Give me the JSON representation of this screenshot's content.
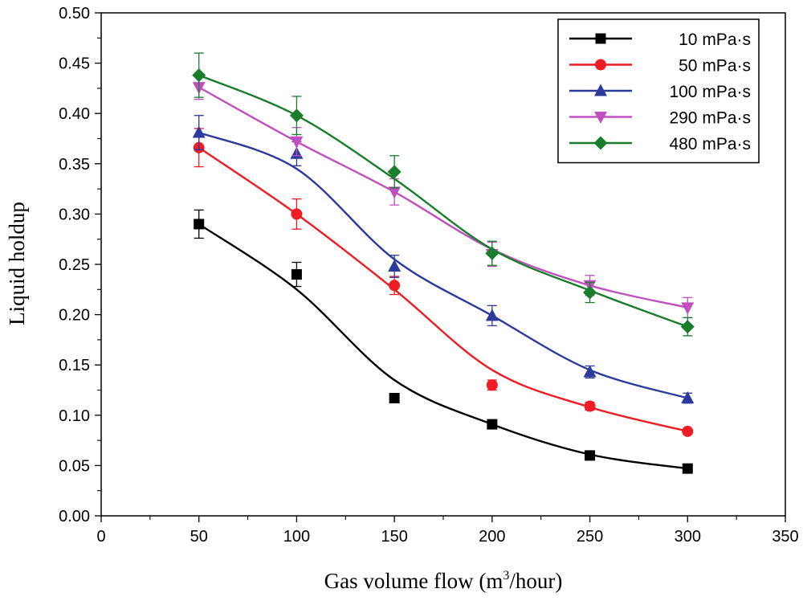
{
  "chart_data": {
    "type": "line",
    "title": "",
    "xlabel_prefix": "Gas volume flow (m",
    "xlabel_sup": "3",
    "xlabel_suffix": "/hour)",
    "ylabel": "Liquid holdup",
    "xlim": [
      0,
      350
    ],
    "ylim": [
      0,
      0.5
    ],
    "x_ticks": [
      0,
      50,
      100,
      150,
      200,
      250,
      300,
      350
    ],
    "y_ticks": [
      0.0,
      0.05,
      0.1,
      0.15,
      0.2,
      0.25,
      0.3,
      0.35,
      0.4,
      0.45,
      0.5
    ],
    "x_tick_labels": [
      "0",
      "50",
      "100",
      "150",
      "200",
      "250",
      "300",
      "350"
    ],
    "y_tick_labels": [
      "0.00",
      "0.05",
      "0.10",
      "0.15",
      "0.20",
      "0.25",
      "0.30",
      "0.35",
      "0.40",
      "0.45",
      "0.50"
    ],
    "legend_position": "top-right",
    "x": [
      50,
      100,
      150,
      200,
      250,
      300
    ],
    "series": [
      {
        "name": "10 mPa·s",
        "color": "#000000",
        "marker": "square",
        "values": [
          0.29,
          0.24,
          0.117,
          0.091,
          0.06,
          0.047
        ],
        "errors": [
          0.014,
          0.012,
          0,
          0,
          0,
          0
        ],
        "curve": [
          0.29,
          0.225,
          0.135,
          0.091,
          0.061,
          0.047
        ]
      },
      {
        "name": "50 mPa·s",
        "color": "#ee1c24",
        "marker": "circle",
        "values": [
          0.366,
          0.3,
          0.229,
          0.13,
          0.109,
          0.084
        ],
        "errors": [
          0.019,
          0.015,
          0.009,
          0.005,
          0.004,
          0
        ],
        "curve": [
          0.366,
          0.3,
          0.225,
          0.145,
          0.108,
          0.084
        ]
      },
      {
        "name": "100 mPa·s",
        "color": "#2b3a9b",
        "marker": "triangle-up",
        "values": [
          0.381,
          0.36,
          0.248,
          0.199,
          0.143,
          0.117
        ],
        "errors": [
          0.017,
          0.012,
          0.011,
          0.01,
          0.006,
          0.005
        ],
        "curve": [
          0.381,
          0.345,
          0.255,
          0.199,
          0.145,
          0.117
        ]
      },
      {
        "name": "290 mPa·s",
        "color": "#c050c0",
        "marker": "triangle-down",
        "values": [
          0.426,
          0.372,
          0.322,
          0.26,
          0.229,
          0.207
        ],
        "errors": [
          0.012,
          0.014,
          0.013,
          0.012,
          0.01,
          0.01
        ],
        "curve": [
          0.426,
          0.372,
          0.322,
          0.265,
          0.229,
          0.207
        ]
      },
      {
        "name": "480 mPa·s",
        "color": "#1a7d2c",
        "marker": "diamond",
        "values": [
          0.438,
          0.398,
          0.342,
          0.261,
          0.222,
          0.188
        ],
        "errors": [
          0.022,
          0.019,
          0.016,
          0.012,
          0.01,
          0.009
        ],
        "curve": [
          0.438,
          0.398,
          0.335,
          0.265,
          0.224,
          0.188
        ]
      }
    ]
  }
}
